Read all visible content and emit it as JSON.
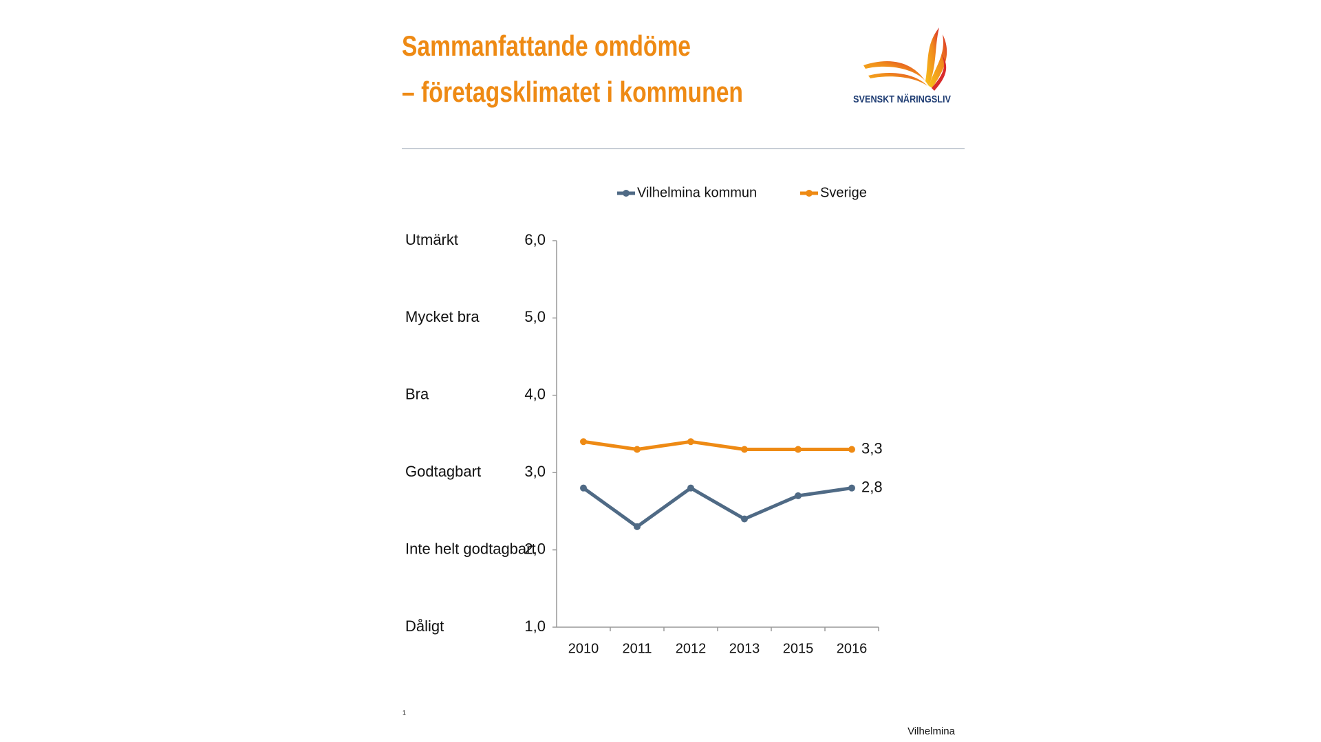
{
  "chart_data": {
    "type": "line",
    "title_lines": [
      "Sammanfattande omdöme",
      "– företagsklimatet i kommunen"
    ],
    "categories": [
      "2010",
      "2011",
      "2012",
      "2013",
      "2015",
      "2016"
    ],
    "series": [
      {
        "name": "Vilhelmina kommun",
        "color": "#4f6a85",
        "values": [
          2.8,
          2.3,
          2.8,
          2.4,
          2.7,
          2.8
        ],
        "value_labels": [
          null,
          null,
          null,
          null,
          null,
          "2,8"
        ]
      },
      {
        "name": "Sverige",
        "color": "#ee8a14",
        "values": [
          3.4,
          3.3,
          3.4,
          3.3,
          3.3,
          3.3
        ],
        "value_labels": [
          null,
          null,
          null,
          null,
          null,
          "3,3"
        ]
      }
    ],
    "ylim": [
      1,
      6
    ],
    "yticks": [
      {
        "value": 1,
        "label": "1,0"
      },
      {
        "value": 2,
        "label": "2,0"
      },
      {
        "value": 3,
        "label": "3,0"
      },
      {
        "value": 4,
        "label": "4,0"
      },
      {
        "value": 5,
        "label": "5,0"
      },
      {
        "value": 6,
        "label": "6,0"
      }
    ],
    "rating_labels": [
      "Dåligt",
      "Inte helt godtagbart",
      "Godtagbart",
      "Bra",
      "Mycket bra",
      "Utmärkt"
    ],
    "legend": "top"
  },
  "logo": {
    "text": "SVENSKT NÄRINGSLIV"
  },
  "footnote": "1",
  "footer": "Vilhelmina"
}
